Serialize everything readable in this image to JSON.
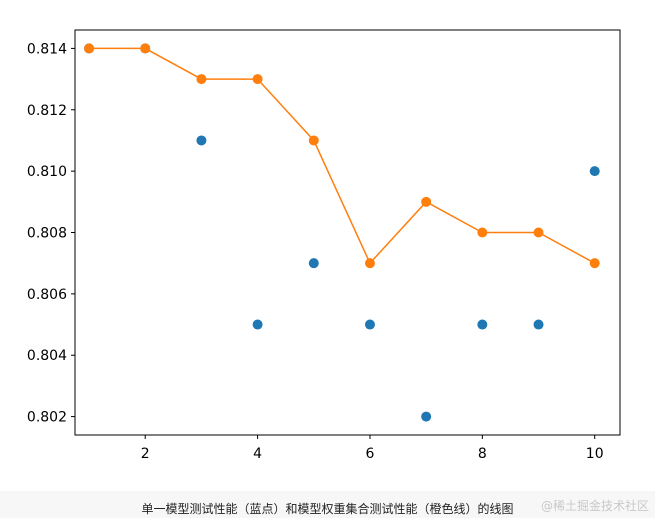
{
  "chart_data": {
    "type": "line",
    "title": "",
    "xlabel": "",
    "ylabel": "",
    "xlim": [
      0.75,
      10.45
    ],
    "ylim": [
      0.8014,
      0.8146
    ],
    "xticks": [
      2,
      4,
      6,
      8,
      10
    ],
    "yticks": [
      0.802,
      0.804,
      0.806,
      0.808,
      0.81,
      0.812,
      0.814
    ],
    "ytick_labels": [
      "0.802",
      "0.804",
      "0.806",
      "0.808",
      "0.810",
      "0.812",
      "0.814"
    ],
    "series": [
      {
        "style": "scatter",
        "color": "#1f77b4",
        "x": [
          1,
          2,
          3,
          4,
          5,
          6,
          7,
          8,
          9,
          10
        ],
        "y": [
          0.814,
          0.814,
          0.811,
          0.805,
          0.807,
          0.805,
          0.802,
          0.805,
          0.805,
          0.81
        ]
      },
      {
        "style": "line-with-markers",
        "color": "#ff7f0e",
        "x": [
          1,
          2,
          3,
          4,
          5,
          6,
          7,
          8,
          9,
          10
        ],
        "y": [
          0.814,
          0.814,
          0.813,
          0.813,
          0.811,
          0.807,
          0.809,
          0.808,
          0.808,
          0.807
        ]
      }
    ],
    "grid": false,
    "legend": "none"
  },
  "caption": "单一模型测试性能（蓝点）和模型权重集合测试性能（橙色线）的线图",
  "watermark": "@稀土掘金技术社区"
}
